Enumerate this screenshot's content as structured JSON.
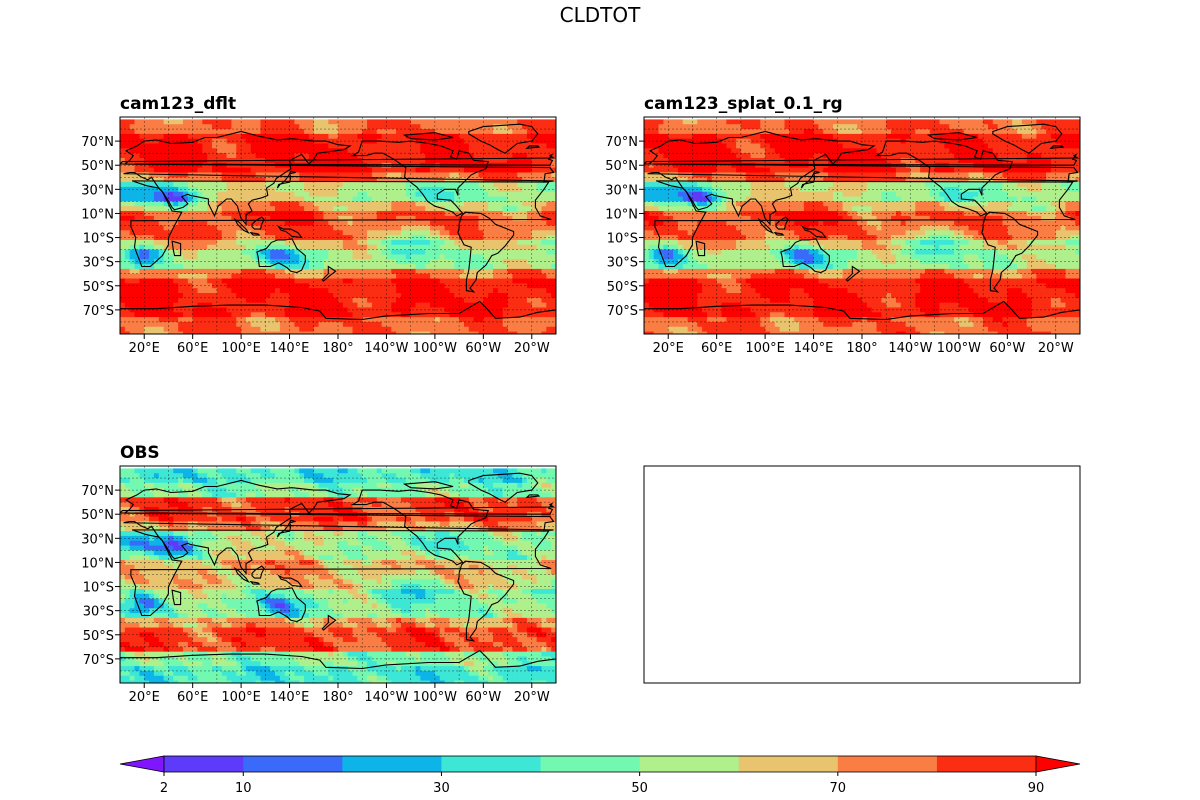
{
  "figure_title": "CLDTOT",
  "chart_data": {
    "type": "heatmap",
    "variable": "CLDTOT",
    "title": "CLDTOT",
    "panels": [
      {
        "id": "dflt",
        "title": "cam123_dflt",
        "field": "model",
        "empty": false
      },
      {
        "id": "splat",
        "title": "cam123_splat_0.1_rg",
        "field": "model2",
        "empty": false
      },
      {
        "id": "obs",
        "title": "OBS",
        "field": "obs",
        "empty": false
      },
      {
        "id": "blank",
        "title": "",
        "field": "",
        "empty": true
      }
    ],
    "lat_ticks": [
      "70°N",
      "50°N",
      "30°N",
      "10°N",
      "10°S",
      "30°S",
      "50°S",
      "70°S"
    ],
    "lat_values": [
      70,
      50,
      30,
      10,
      -10,
      -30,
      -50,
      -70
    ],
    "lon_ticks": [
      "20°E",
      "60°E",
      "100°E",
      "140°E",
      "180°",
      "140°W",
      "100°W",
      "60°W",
      "20°W"
    ],
    "lon_values": [
      20,
      60,
      100,
      140,
      180,
      220,
      260,
      300,
      340
    ],
    "lon_range": [
      0,
      360
    ],
    "lat_range": [
      -90,
      90
    ],
    "gridlines": true,
    "colorbar": {
      "levels": [
        2,
        10,
        20,
        30,
        40,
        50,
        60,
        70,
        80,
        90
      ],
      "tick_labels": [
        "2",
        "10",
        "30",
        "50",
        "70",
        "90"
      ],
      "tick_values": [
        2,
        10,
        30,
        50,
        70,
        90
      ],
      "extend": "both",
      "colors": [
        "#8015ff",
        "#5e3afb",
        "#3a6afa",
        "#0db4e8",
        "#3de7d6",
        "#73f8b1",
        "#afef8c",
        "#e9c46f",
        "#fa7d44",
        "#fb2d13",
        "#ff0000"
      ],
      "under_color": "#8015ff",
      "over_color": "#ff0000"
    }
  }
}
